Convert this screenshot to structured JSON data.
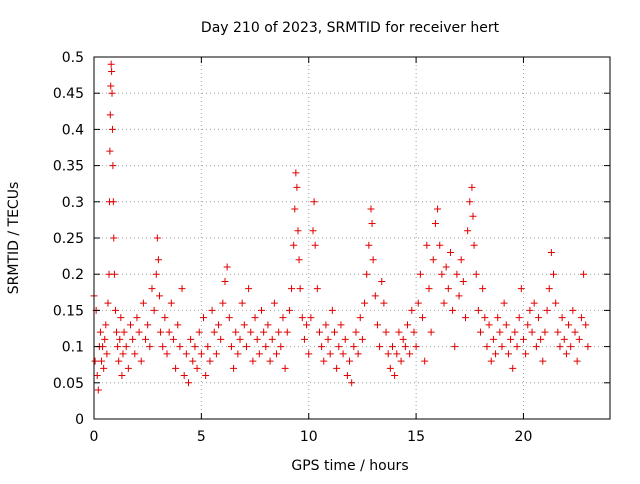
{
  "chart_data": {
    "type": "scatter",
    "title": "Day 210 of 2023, SRMTID for receiver hert",
    "xlabel": "GPS time / hours",
    "ylabel": "SRMTID / TECUs",
    "xlim": [
      0,
      24.03
    ],
    "ylim": [
      0,
      0.5
    ],
    "x_ticks": [
      {
        "value": 0,
        "label": "0"
      },
      {
        "value": 5,
        "label": "5"
      },
      {
        "value": 10,
        "label": "10"
      },
      {
        "value": 15,
        "label": "15"
      },
      {
        "value": 20,
        "label": "20"
      }
    ],
    "y_ticks": [
      {
        "value": 0,
        "label": "0"
      },
      {
        "value": 0.05,
        "label": "0.05"
      },
      {
        "value": 0.1,
        "label": "0.1"
      },
      {
        "value": 0.15,
        "label": "0.15"
      },
      {
        "value": 0.2,
        "label": "0.2"
      },
      {
        "value": 0.25,
        "label": "0.25"
      },
      {
        "value": 0.3,
        "label": "0.3"
      },
      {
        "value": 0.35,
        "label": "0.35"
      },
      {
        "value": 0.4,
        "label": "0.4"
      },
      {
        "value": 0.45,
        "label": "0.45"
      },
      {
        "value": 0.5,
        "label": "0.5"
      }
    ],
    "grid": true,
    "marker": "+",
    "marker_color": "#e00000",
    "series": [
      {
        "name": "",
        "points": [
          [
            0.0,
            0.17
          ],
          [
            0.05,
            0.08
          ],
          [
            0.1,
            0.15
          ],
          [
            0.15,
            0.06
          ],
          [
            0.2,
            0.04
          ],
          [
            0.25,
            0.1
          ],
          [
            0.3,
            0.12
          ],
          [
            0.35,
            0.08
          ],
          [
            0.4,
            0.1
          ],
          [
            0.45,
            0.07
          ],
          [
            0.5,
            0.11
          ],
          [
            0.55,
            0.13
          ],
          [
            0.6,
            0.09
          ],
          [
            0.65,
            0.16
          ],
          [
            0.7,
            0.2
          ],
          [
            0.72,
            0.3
          ],
          [
            0.74,
            0.37
          ],
          [
            0.76,
            0.42
          ],
          [
            0.78,
            0.46
          ],
          [
            0.8,
            0.49
          ],
          [
            0.82,
            0.48
          ],
          [
            0.84,
            0.45
          ],
          [
            0.86,
            0.4
          ],
          [
            0.88,
            0.35
          ],
          [
            0.9,
            0.3
          ],
          [
            0.92,
            0.25
          ],
          [
            0.95,
            0.2
          ],
          [
            1.0,
            0.15
          ],
          [
            1.05,
            0.12
          ],
          [
            1.1,
            0.1
          ],
          [
            1.15,
            0.08
          ],
          [
            1.2,
            0.11
          ],
          [
            1.25,
            0.14
          ],
          [
            1.3,
            0.06
          ],
          [
            1.35,
            0.09
          ],
          [
            1.4,
            0.12
          ],
          [
            1.5,
            0.1
          ],
          [
            1.6,
            0.07
          ],
          [
            1.7,
            0.13
          ],
          [
            1.8,
            0.11
          ],
          [
            1.9,
            0.09
          ],
          [
            2.0,
            0.14
          ],
          [
            2.1,
            0.12
          ],
          [
            2.2,
            0.08
          ],
          [
            2.3,
            0.16
          ],
          [
            2.4,
            0.11
          ],
          [
            2.5,
            0.13
          ],
          [
            2.6,
            0.1
          ],
          [
            2.7,
            0.18
          ],
          [
            2.8,
            0.15
          ],
          [
            2.9,
            0.2
          ],
          [
            2.95,
            0.25
          ],
          [
            3.0,
            0.22
          ],
          [
            3.05,
            0.17
          ],
          [
            3.1,
            0.12
          ],
          [
            3.2,
            0.1
          ],
          [
            3.3,
            0.14
          ],
          [
            3.4,
            0.09
          ],
          [
            3.5,
            0.12
          ],
          [
            3.6,
            0.16
          ],
          [
            3.7,
            0.11
          ],
          [
            3.8,
            0.07
          ],
          [
            3.9,
            0.13
          ],
          [
            4.0,
            0.1
          ],
          [
            4.1,
            0.18
          ],
          [
            4.2,
            0.06
          ],
          [
            4.3,
            0.09
          ],
          [
            4.4,
            0.05
          ],
          [
            4.5,
            0.11
          ],
          [
            4.6,
            0.08
          ],
          [
            4.7,
            0.1
          ],
          [
            4.8,
            0.07
          ],
          [
            4.9,
            0.12
          ],
          [
            5.0,
            0.09
          ],
          [
            5.1,
            0.14
          ],
          [
            5.2,
            0.06
          ],
          [
            5.3,
            0.1
          ],
          [
            5.4,
            0.08
          ],
          [
            5.5,
            0.15
          ],
          [
            5.6,
            0.12
          ],
          [
            5.7,
            0.09
          ],
          [
            5.8,
            0.13
          ],
          [
            5.9,
            0.11
          ],
          [
            6.0,
            0.16
          ],
          [
            6.1,
            0.19
          ],
          [
            6.2,
            0.21
          ],
          [
            6.3,
            0.14
          ],
          [
            6.4,
            0.1
          ],
          [
            6.5,
            0.07
          ],
          [
            6.6,
            0.12
          ],
          [
            6.7,
            0.09
          ],
          [
            6.8,
            0.11
          ],
          [
            6.9,
            0.16
          ],
          [
            7.0,
            0.13
          ],
          [
            7.1,
            0.1
          ],
          [
            7.2,
            0.18
          ],
          [
            7.3,
            0.12
          ],
          [
            7.4,
            0.08
          ],
          [
            7.5,
            0.14
          ],
          [
            7.6,
            0.11
          ],
          [
            7.7,
            0.09
          ],
          [
            7.8,
            0.15
          ],
          [
            7.9,
            0.12
          ],
          [
            8.0,
            0.1
          ],
          [
            8.1,
            0.13
          ],
          [
            8.2,
            0.08
          ],
          [
            8.3,
            0.11
          ],
          [
            8.4,
            0.16
          ],
          [
            8.5,
            0.09
          ],
          [
            8.6,
            0.12
          ],
          [
            8.7,
            0.1
          ],
          [
            8.8,
            0.14
          ],
          [
            8.9,
            0.07
          ],
          [
            9.0,
            0.12
          ],
          [
            9.1,
            0.15
          ],
          [
            9.2,
            0.18
          ],
          [
            9.3,
            0.24
          ],
          [
            9.35,
            0.29
          ],
          [
            9.4,
            0.34
          ],
          [
            9.45,
            0.32
          ],
          [
            9.5,
            0.26
          ],
          [
            9.55,
            0.22
          ],
          [
            9.6,
            0.18
          ],
          [
            9.7,
            0.14
          ],
          [
            9.8,
            0.11
          ],
          [
            9.9,
            0.13
          ],
          [
            10.0,
            0.09
          ],
          [
            10.1,
            0.14
          ],
          [
            10.2,
            0.26
          ],
          [
            10.25,
            0.3
          ],
          [
            10.3,
            0.24
          ],
          [
            10.4,
            0.18
          ],
          [
            10.5,
            0.12
          ],
          [
            10.6,
            0.1
          ],
          [
            10.7,
            0.08
          ],
          [
            10.8,
            0.13
          ],
          [
            10.9,
            0.11
          ],
          [
            11.0,
            0.09
          ],
          [
            11.1,
            0.15
          ],
          [
            11.2,
            0.12
          ],
          [
            11.3,
            0.07
          ],
          [
            11.4,
            0.1
          ],
          [
            11.5,
            0.13
          ],
          [
            11.6,
            0.09
          ],
          [
            11.7,
            0.11
          ],
          [
            11.8,
            0.06
          ],
          [
            11.9,
            0.08
          ],
          [
            12.0,
            0.05
          ],
          [
            12.1,
            0.1
          ],
          [
            12.2,
            0.12
          ],
          [
            12.3,
            0.09
          ],
          [
            12.4,
            0.14
          ],
          [
            12.5,
            0.11
          ],
          [
            12.6,
            0.16
          ],
          [
            12.7,
            0.2
          ],
          [
            12.8,
            0.24
          ],
          [
            12.9,
            0.29
          ],
          [
            12.95,
            0.27
          ],
          [
            13.0,
            0.22
          ],
          [
            13.1,
            0.17
          ],
          [
            13.2,
            0.13
          ],
          [
            13.3,
            0.1
          ],
          [
            13.4,
            0.19
          ],
          [
            13.5,
            0.16
          ],
          [
            13.6,
            0.12
          ],
          [
            13.7,
            0.09
          ],
          [
            13.8,
            0.07
          ],
          [
            13.9,
            0.1
          ],
          [
            14.0,
            0.06
          ],
          [
            14.1,
            0.09
          ],
          [
            14.2,
            0.12
          ],
          [
            14.3,
            0.08
          ],
          [
            14.4,
            0.11
          ],
          [
            14.5,
            0.1
          ],
          [
            14.6,
            0.13
          ],
          [
            14.7,
            0.09
          ],
          [
            14.8,
            0.15
          ],
          [
            14.9,
            0.12
          ],
          [
            15.0,
            0.1
          ],
          [
            15.1,
            0.16
          ],
          [
            15.2,
            0.2
          ],
          [
            15.3,
            0.14
          ],
          [
            15.4,
            0.08
          ],
          [
            15.5,
            0.24
          ],
          [
            15.6,
            0.18
          ],
          [
            15.7,
            0.12
          ],
          [
            15.8,
            0.22
          ],
          [
            15.9,
            0.27
          ],
          [
            16.0,
            0.29
          ],
          [
            16.1,
            0.24
          ],
          [
            16.2,
            0.2
          ],
          [
            16.3,
            0.16
          ],
          [
            16.4,
            0.21
          ],
          [
            16.5,
            0.18
          ],
          [
            16.6,
            0.23
          ],
          [
            16.7,
            0.15
          ],
          [
            16.8,
            0.1
          ],
          [
            16.9,
            0.2
          ],
          [
            17.0,
            0.17
          ],
          [
            17.1,
            0.22
          ],
          [
            17.2,
            0.19
          ],
          [
            17.3,
            0.14
          ],
          [
            17.4,
            0.26
          ],
          [
            17.5,
            0.3
          ],
          [
            17.6,
            0.32
          ],
          [
            17.65,
            0.28
          ],
          [
            17.7,
            0.24
          ],
          [
            17.8,
            0.2
          ],
          [
            17.9,
            0.15
          ],
          [
            18.0,
            0.12
          ],
          [
            18.1,
            0.18
          ],
          [
            18.2,
            0.14
          ],
          [
            18.3,
            0.1
          ],
          [
            18.4,
            0.13
          ],
          [
            18.5,
            0.08
          ],
          [
            18.6,
            0.11
          ],
          [
            18.7,
            0.09
          ],
          [
            18.8,
            0.14
          ],
          [
            18.9,
            0.12
          ],
          [
            19.0,
            0.1
          ],
          [
            19.1,
            0.16
          ],
          [
            19.2,
            0.13
          ],
          [
            19.3,
            0.09
          ],
          [
            19.4,
            0.11
          ],
          [
            19.5,
            0.07
          ],
          [
            19.6,
            0.12
          ],
          [
            19.7,
            0.1
          ],
          [
            19.8,
            0.14
          ],
          [
            19.9,
            0.18
          ],
          [
            20.0,
            0.11
          ],
          [
            20.1,
            0.09
          ],
          [
            20.2,
            0.13
          ],
          [
            20.3,
            0.15
          ],
          [
            20.4,
            0.12
          ],
          [
            20.5,
            0.16
          ],
          [
            20.6,
            0.1
          ],
          [
            20.7,
            0.14
          ],
          [
            20.8,
            0.11
          ],
          [
            20.9,
            0.08
          ],
          [
            21.0,
            0.12
          ],
          [
            21.1,
            0.15
          ],
          [
            21.2,
            0.18
          ],
          [
            21.3,
            0.23
          ],
          [
            21.4,
            0.2
          ],
          [
            21.5,
            0.16
          ],
          [
            21.6,
            0.12
          ],
          [
            21.7,
            0.1
          ],
          [
            21.8,
            0.14
          ],
          [
            21.9,
            0.11
          ],
          [
            22.0,
            0.09
          ],
          [
            22.1,
            0.13
          ],
          [
            22.2,
            0.1
          ],
          [
            22.3,
            0.15
          ],
          [
            22.4,
            0.12
          ],
          [
            22.5,
            0.08
          ],
          [
            22.6,
            0.11
          ],
          [
            22.7,
            0.14
          ],
          [
            22.8,
            0.2
          ],
          [
            22.9,
            0.13
          ],
          [
            23.0,
            0.1
          ]
        ]
      }
    ]
  }
}
